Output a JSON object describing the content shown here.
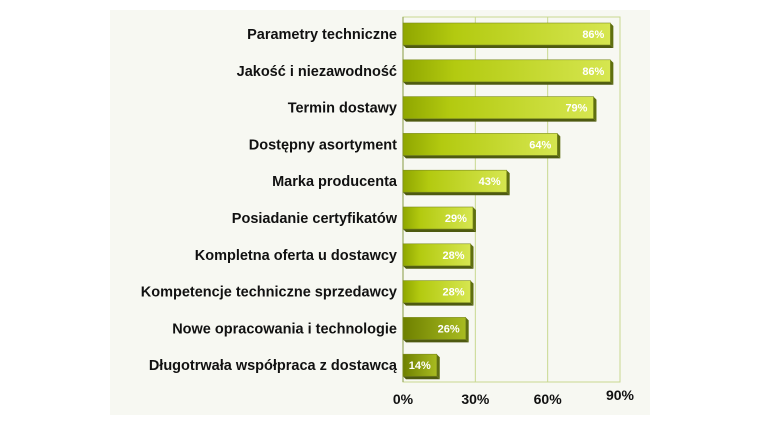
{
  "chart_data": {
    "type": "bar",
    "orientation": "horizontal",
    "categories": [
      "Parametry techniczne",
      "Jakość i niezawodność",
      "Termin dostawy",
      "Dostępny asortyment",
      "Marka producenta",
      "Posiadanie certyfikatów",
      "Kompletna oferta u dostawcy",
      "Kompetencje techniczne sprzedawcy",
      "Nowe opracowania i technologie",
      "Długotrwała współpraca z dostawcą"
    ],
    "values": [
      86,
      86,
      79,
      64,
      43,
      29,
      28,
      28,
      26,
      14
    ],
    "value_labels": [
      "86%",
      "86%",
      "79%",
      "64%",
      "43%",
      "29%",
      "28%",
      "28%",
      "26%",
      "14%"
    ],
    "xticks": [
      0,
      30,
      60,
      90
    ],
    "xtick_labels": [
      "0%",
      "30%",
      "60%",
      "90%"
    ],
    "xlim": [
      0,
      90
    ],
    "grid": true,
    "colors": {
      "bar_light": "#cfe040",
      "bar_dark": "#8ca000",
      "grid": "#c8d890",
      "bar_outline": "#555555"
    }
  }
}
